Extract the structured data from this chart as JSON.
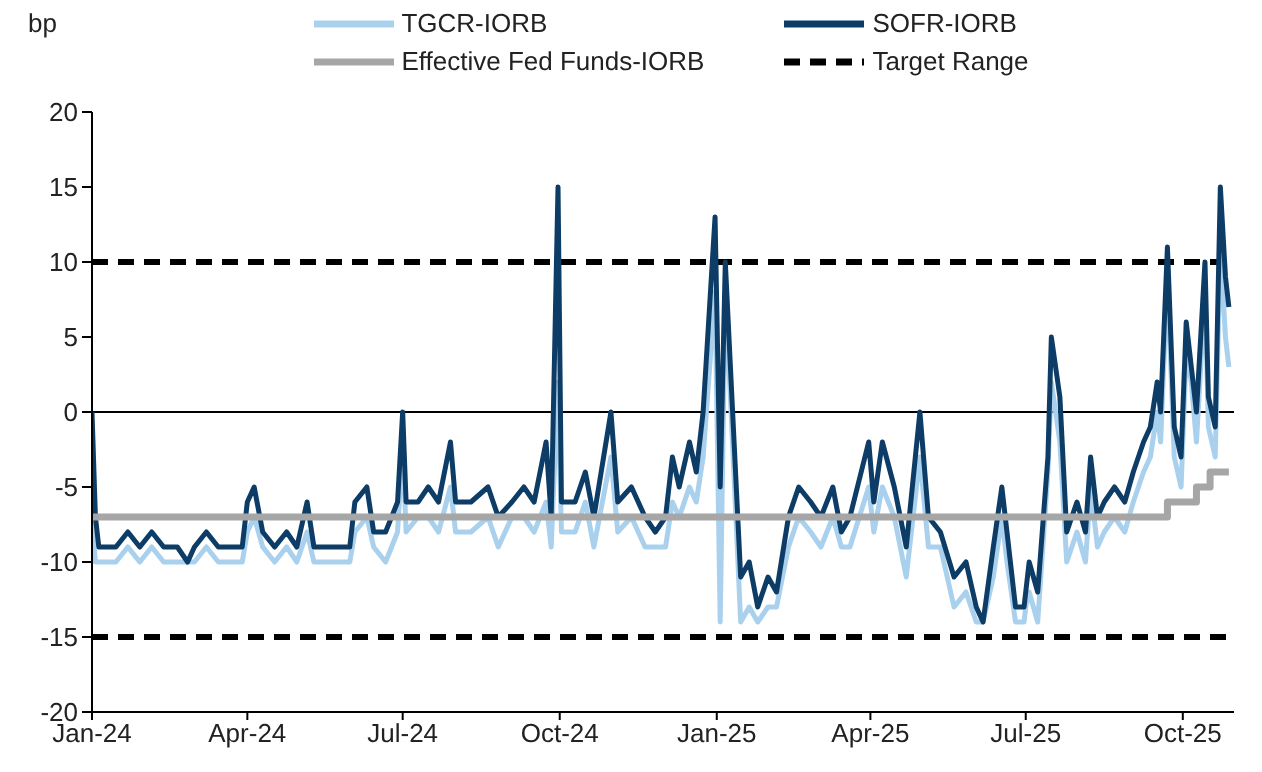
{
  "chart_data": {
    "type": "line",
    "ylabel": "bp",
    "legend": "top",
    "grid": false,
    "line_style": "solid",
    "marker": "none",
    "xlim": [
      "2024-01-01",
      "2025-10-31"
    ],
    "xticks": [
      {
        "value": "2024-01-01",
        "label": "Jan-24"
      },
      {
        "value": "2024-04-01",
        "label": "Apr-24"
      },
      {
        "value": "2024-07-01",
        "label": "Jul-24"
      },
      {
        "value": "2024-10-01",
        "label": "Oct-24"
      },
      {
        "value": "2025-01-01",
        "label": "Jan-25"
      },
      {
        "value": "2025-04-01",
        "label": "Apr-25"
      },
      {
        "value": "2025-07-01",
        "label": "Jul-25"
      },
      {
        "value": "2025-10-01",
        "label": "Oct-25"
      }
    ],
    "ylim": [
      -20,
      20
    ],
    "yticks": [
      -20,
      -15,
      -10,
      -5,
      0,
      5,
      10,
      15,
      20
    ],
    "series": [
      {
        "name": "TGCR-IORB",
        "color": "#a9d1ee",
        "x": [
          "2024-01-01",
          "2024-01-03",
          "2024-01-05",
          "2024-01-15",
          "2024-01-22",
          "2024-01-29",
          "2024-02-05",
          "2024-02-12",
          "2024-02-20",
          "2024-02-26",
          "2024-03-01",
          "2024-03-08",
          "2024-03-15",
          "2024-03-29",
          "2024-04-01",
          "2024-04-05",
          "2024-04-10",
          "2024-04-17",
          "2024-04-24",
          "2024-04-30",
          "2024-05-06",
          "2024-05-10",
          "2024-05-20",
          "2024-05-31",
          "2024-06-03",
          "2024-06-10",
          "2024-06-14",
          "2024-06-21",
          "2024-06-28",
          "2024-07-01",
          "2024-07-03",
          "2024-07-10",
          "2024-07-16",
          "2024-07-22",
          "2024-07-29",
          "2024-08-01",
          "2024-08-10",
          "2024-08-20",
          "2024-08-26",
          "2024-09-03",
          "2024-09-10",
          "2024-09-16",
          "2024-09-23",
          "2024-09-26",
          "2024-09-30",
          "2024-10-02",
          "2024-10-10",
          "2024-10-16",
          "2024-10-21",
          "2024-10-31",
          "2024-11-04",
          "2024-11-12",
          "2024-11-20",
          "2024-11-26",
          "2024-12-02",
          "2024-12-06",
          "2024-12-10",
          "2024-12-16",
          "2024-12-20",
          "2024-12-24",
          "2024-12-31",
          "2025-01-03",
          "2025-01-06",
          "2025-01-09",
          "2025-01-15",
          "2025-01-20",
          "2025-01-25",
          "2025-01-31",
          "2025-02-05",
          "2025-02-12",
          "2025-02-18",
          "2025-02-25",
          "2025-03-03",
          "2025-03-10",
          "2025-03-15",
          "2025-03-20",
          "2025-03-31",
          "2025-04-03",
          "2025-04-08",
          "2025-04-15",
          "2025-04-22",
          "2025-04-30",
          "2025-05-05",
          "2025-05-12",
          "2025-05-20",
          "2025-05-27",
          "2025-06-02",
          "2025-06-06",
          "2025-06-12",
          "2025-06-17",
          "2025-06-20",
          "2025-06-25",
          "2025-06-30",
          "2025-07-01",
          "2025-07-03",
          "2025-07-08",
          "2025-07-14",
          "2025-07-16",
          "2025-07-21",
          "2025-07-25",
          "2025-07-31",
          "2025-08-05",
          "2025-08-08",
          "2025-08-12",
          "2025-08-16",
          "2025-08-22",
          "2025-08-28",
          "2025-09-02",
          "2025-09-08",
          "2025-09-12",
          "2025-09-16",
          "2025-09-18",
          "2025-09-22",
          "2025-09-26",
          "2025-09-30",
          "2025-10-03",
          "2025-10-06",
          "2025-10-09",
          "2025-10-14",
          "2025-10-16",
          "2025-10-20",
          "2025-10-23",
          "2025-10-26",
          "2025-10-28"
        ],
        "values": [
          -7,
          -10,
          -10,
          -10,
          -9,
          -10,
          -9,
          -10,
          -10,
          -10,
          -10,
          -9,
          -10,
          -10,
          -8,
          -7,
          -9,
          -10,
          -9,
          -10,
          -8,
          -10,
          -10,
          -10,
          -8,
          -7,
          -9,
          -10,
          -8,
          -2,
          -8,
          -7,
          -7,
          -8,
          -5,
          -8,
          -8,
          -7,
          -9,
          -7,
          -7,
          -8,
          -6,
          -9,
          2,
          -8,
          -8,
          -6,
          -9,
          -3,
          -8,
          -7,
          -9,
          -9,
          -9,
          -6,
          -7,
          -5,
          -6,
          -3,
          8,
          -14,
          8,
          1,
          -14,
          -13,
          -14,
          -13,
          -13,
          -9,
          -7,
          -8,
          -9,
          -7,
          -9,
          -9,
          -5,
          -8,
          -5,
          -7,
          -11,
          -3,
          -9,
          -9,
          -13,
          -12,
          -14,
          -14,
          -11,
          -7,
          -10,
          -14,
          -14,
          -13,
          -12,
          -14,
          -4,
          2,
          -2,
          -10,
          -8,
          -10,
          -5,
          -9,
          -8,
          -7,
          -8,
          -6,
          -4,
          -3,
          0,
          -2,
          9,
          -3,
          -5,
          4,
          2,
          -2,
          8,
          -1,
          -3,
          11,
          5,
          3
        ]
      },
      {
        "name": "SOFR-IORB",
        "color": "#0d3d66",
        "x": [
          "2024-01-01",
          "2024-01-03",
          "2024-01-05",
          "2024-01-15",
          "2024-01-22",
          "2024-01-29",
          "2024-02-05",
          "2024-02-12",
          "2024-02-20",
          "2024-02-26",
          "2024-03-01",
          "2024-03-08",
          "2024-03-15",
          "2024-03-29",
          "2024-04-01",
          "2024-04-05",
          "2024-04-10",
          "2024-04-17",
          "2024-04-24",
          "2024-04-30",
          "2024-05-06",
          "2024-05-10",
          "2024-05-20",
          "2024-05-31",
          "2024-06-03",
          "2024-06-10",
          "2024-06-14",
          "2024-06-21",
          "2024-06-28",
          "2024-07-01",
          "2024-07-03",
          "2024-07-10",
          "2024-07-16",
          "2024-07-22",
          "2024-07-29",
          "2024-08-01",
          "2024-08-10",
          "2024-08-20",
          "2024-08-26",
          "2024-09-03",
          "2024-09-10",
          "2024-09-16",
          "2024-09-23",
          "2024-09-26",
          "2024-09-30",
          "2024-10-02",
          "2024-10-10",
          "2024-10-16",
          "2024-10-21",
          "2024-10-31",
          "2024-11-04",
          "2024-11-12",
          "2024-11-20",
          "2024-11-26",
          "2024-12-02",
          "2024-12-06",
          "2024-12-10",
          "2024-12-16",
          "2024-12-20",
          "2024-12-24",
          "2024-12-31",
          "2025-01-03",
          "2025-01-06",
          "2025-01-09",
          "2025-01-15",
          "2025-01-20",
          "2025-01-25",
          "2025-01-31",
          "2025-02-05",
          "2025-02-12",
          "2025-02-18",
          "2025-02-25",
          "2025-03-03",
          "2025-03-10",
          "2025-03-15",
          "2025-03-20",
          "2025-03-31",
          "2025-04-03",
          "2025-04-08",
          "2025-04-15",
          "2025-04-22",
          "2025-04-30",
          "2025-05-05",
          "2025-05-12",
          "2025-05-20",
          "2025-05-27",
          "2025-06-02",
          "2025-06-06",
          "2025-06-12",
          "2025-06-17",
          "2025-06-20",
          "2025-06-25",
          "2025-06-30",
          "2025-07-01",
          "2025-07-03",
          "2025-07-08",
          "2025-07-14",
          "2025-07-16",
          "2025-07-21",
          "2025-07-25",
          "2025-07-31",
          "2025-08-05",
          "2025-08-08",
          "2025-08-12",
          "2025-08-16",
          "2025-08-22",
          "2025-08-28",
          "2025-09-02",
          "2025-09-08",
          "2025-09-12",
          "2025-09-16",
          "2025-09-18",
          "2025-09-22",
          "2025-09-26",
          "2025-09-30",
          "2025-10-03",
          "2025-10-06",
          "2025-10-09",
          "2025-10-14",
          "2025-10-16",
          "2025-10-20",
          "2025-10-23",
          "2025-10-26",
          "2025-10-28"
        ],
        "values": [
          0,
          -7,
          -9,
          -9,
          -8,
          -9,
          -8,
          -9,
          -9,
          -10,
          -9,
          -8,
          -9,
          -9,
          -6,
          -5,
          -8,
          -9,
          -8,
          -9,
          -6,
          -9,
          -9,
          -9,
          -6,
          -5,
          -8,
          -8,
          -6,
          0,
          -6,
          -6,
          -5,
          -6,
          -2,
          -6,
          -6,
          -5,
          -7,
          -6,
          -5,
          -6,
          -2,
          -7,
          15,
          -6,
          -6,
          -4,
          -7,
          0,
          -6,
          -5,
          -7,
          -8,
          -7,
          -3,
          -5,
          -2,
          -4,
          0,
          13,
          -5,
          10,
          3,
          -11,
          -10,
          -13,
          -11,
          -12,
          -7,
          -5,
          -6,
          -7,
          -5,
          -8,
          -7,
          -2,
          -6,
          -2,
          -5,
          -9,
          0,
          -7,
          -8,
          -11,
          -10,
          -13,
          -14,
          -9,
          -5,
          -8,
          -13,
          -13,
          -12,
          -10,
          -12,
          -3,
          5,
          1,
          -8,
          -6,
          -8,
          -3,
          -7,
          -6,
          -5,
          -6,
          -4,
          -2,
          -1,
          2,
          0,
          11,
          -1,
          -3,
          6,
          3,
          0,
          10,
          1,
          -1,
          15,
          9,
          7
        ]
      },
      {
        "name": "Effective Fed Funds-IORB",
        "color": "#a6a6a6",
        "type": "step",
        "x": [
          "2024-01-01",
          "2025-09-22",
          "2025-10-09",
          "2025-10-17",
          "2025-10-28"
        ],
        "values": [
          -7,
          -6,
          -5,
          -4,
          -4
        ]
      }
    ],
    "ref_lines": [
      {
        "axis": "y",
        "value": 0,
        "color": "#000000",
        "line_style": "solid"
      },
      {
        "axis": "y",
        "value": 10,
        "label": "Target Range",
        "color": "#000000",
        "line_style": "dashed"
      },
      {
        "axis": "y",
        "value": -15,
        "color": "#000000",
        "line_style": "dashed"
      }
    ]
  }
}
